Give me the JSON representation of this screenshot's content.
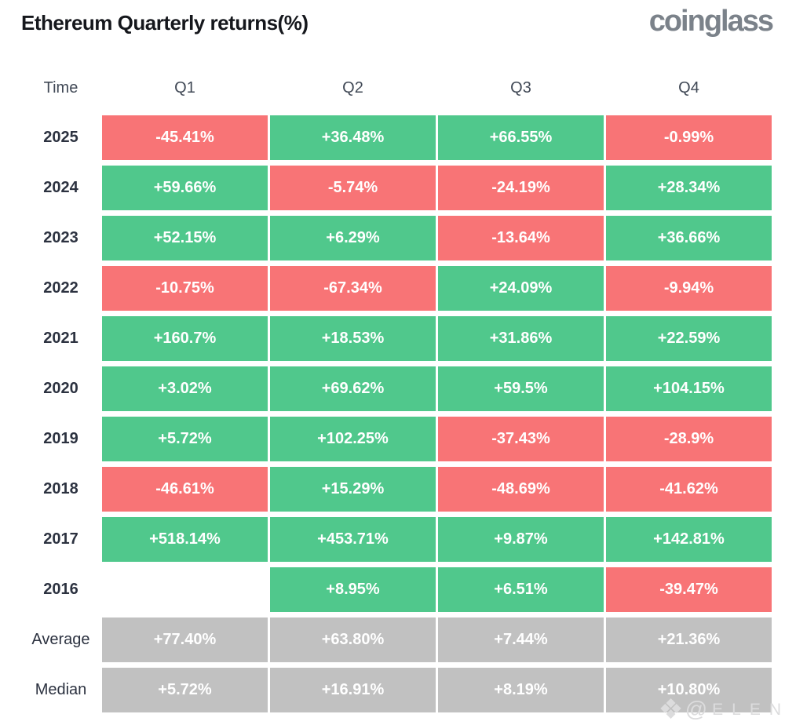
{
  "page": {
    "title": "Ethereum Quarterly returns(%)",
    "brand": "coinglass",
    "watermark": {
      "icon_glyph": "❖",
      "at_symbol": "@",
      "text": "ELEN"
    }
  },
  "colors": {
    "positive": "#50C88C",
    "negative": "#F87476",
    "neutral": "#C1C1C1",
    "cell_text": "#FFFFFF",
    "title_text": "#15171C",
    "brand_text": "#7B828A",
    "header_text": "#414956",
    "label_text": "#2C3240",
    "watermark": "#DCDCDD"
  },
  "table": {
    "headers": [
      "Time",
      "Q1",
      "Q2",
      "Q3",
      "Q4"
    ],
    "rows": [
      {
        "label": "2025",
        "summary": false,
        "cells": [
          "-45.41%",
          "+36.48%",
          "+66.55%",
          "-0.99%"
        ]
      },
      {
        "label": "2024",
        "summary": false,
        "cells": [
          "+59.66%",
          "-5.74%",
          "-24.19%",
          "+28.34%"
        ]
      },
      {
        "label": "2023",
        "summary": false,
        "cells": [
          "+52.15%",
          "+6.29%",
          "-13.64%",
          "+36.66%"
        ]
      },
      {
        "label": "2022",
        "summary": false,
        "cells": [
          "-10.75%",
          "-67.34%",
          "+24.09%",
          "-9.94%"
        ]
      },
      {
        "label": "2021",
        "summary": false,
        "cells": [
          "+160.7%",
          "+18.53%",
          "+31.86%",
          "+22.59%"
        ]
      },
      {
        "label": "2020",
        "summary": false,
        "cells": [
          "+3.02%",
          "+69.62%",
          "+59.5%",
          "+104.15%"
        ]
      },
      {
        "label": "2019",
        "summary": false,
        "cells": [
          "+5.72%",
          "+102.25%",
          "-37.43%",
          "-28.9%"
        ]
      },
      {
        "label": "2018",
        "summary": false,
        "cells": [
          "-46.61%",
          "+15.29%",
          "-48.69%",
          "-41.62%"
        ]
      },
      {
        "label": "2017",
        "summary": false,
        "cells": [
          "+518.14%",
          "+453.71%",
          "+9.87%",
          "+142.81%"
        ]
      },
      {
        "label": "2016",
        "summary": false,
        "cells": [
          "",
          "+8.95%",
          "+6.51%",
          "-39.47%"
        ]
      },
      {
        "label": "Average",
        "summary": true,
        "cells": [
          "+77.40%",
          "+63.80%",
          "+7.44%",
          "+21.36%"
        ]
      },
      {
        "label": "Median",
        "summary": true,
        "cells": [
          "+5.72%",
          "+16.91%",
          "+8.19%",
          "+10.80%"
        ]
      }
    ]
  },
  "chart_data": {
    "type": "heatmap",
    "title": "Ethereum Quarterly returns(%)",
    "columns": [
      "Q1",
      "Q2",
      "Q3",
      "Q4"
    ],
    "row_labels": [
      "2025",
      "2024",
      "2023",
      "2022",
      "2021",
      "2020",
      "2019",
      "2018",
      "2017",
      "2016",
      "Average",
      "Median"
    ],
    "values_pct": [
      [
        -45.41,
        36.48,
        66.55,
        -0.99
      ],
      [
        59.66,
        -5.74,
        -24.19,
        28.34
      ],
      [
        52.15,
        6.29,
        -13.64,
        36.66
      ],
      [
        -10.75,
        -67.34,
        24.09,
        -9.94
      ],
      [
        160.7,
        18.53,
        31.86,
        22.59
      ],
      [
        3.02,
        69.62,
        59.5,
        104.15
      ],
      [
        5.72,
        102.25,
        -37.43,
        -28.9
      ],
      [
        -46.61,
        15.29,
        -48.69,
        -41.62
      ],
      [
        518.14,
        453.71,
        9.87,
        142.81
      ],
      [
        null,
        8.95,
        6.51,
        -39.47
      ],
      [
        77.4,
        63.8,
        7.44,
        21.36
      ],
      [
        5.72,
        16.91,
        8.19,
        10.8
      ]
    ],
    "color_rule": "green = positive return, red = negative return, gray = Average/Median summary rows, blank = no data"
  }
}
